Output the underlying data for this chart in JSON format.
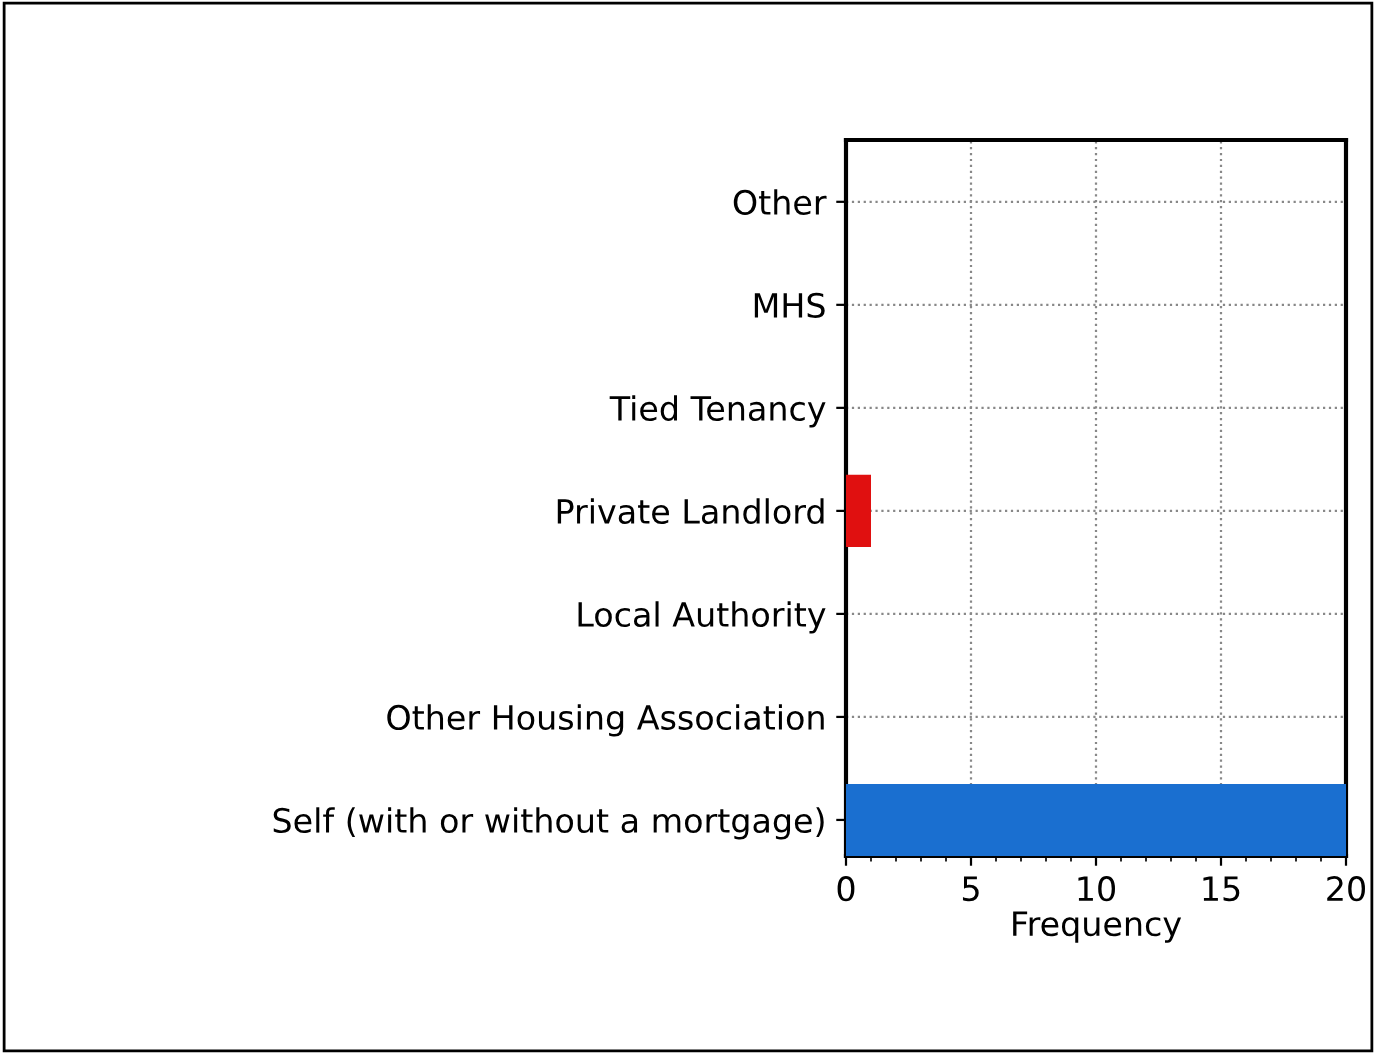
{
  "chart_data": {
    "type": "bar",
    "orientation": "horizontal",
    "xlabel": "Frequency",
    "categories": [
      "Other",
      "MHS",
      "Tied Tenancy",
      "Private Landlord",
      "Local Authority",
      "Other Housing Association",
      "Self (with or without a mortgage)"
    ],
    "values": [
      0,
      0,
      0,
      1,
      0,
      0,
      20
    ],
    "colors": [
      "#1a6fd0",
      "#1a6fd0",
      "#1a6fd0",
      "#e01010",
      "#1a6fd0",
      "#1a6fd0",
      "#1a6fd0"
    ],
    "xlim": [
      0,
      20
    ],
    "xticks": [
      0,
      5,
      10,
      15,
      20
    ],
    "grid": true
  }
}
